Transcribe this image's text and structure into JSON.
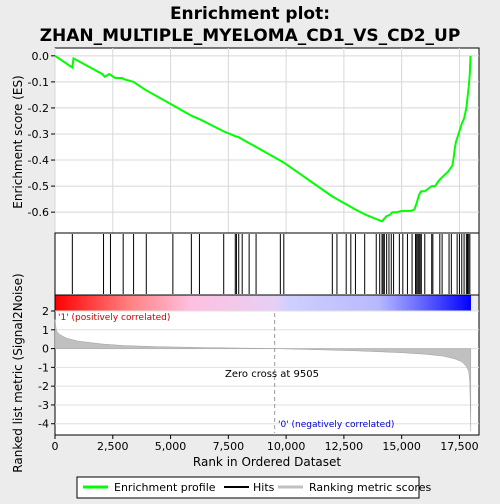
{
  "chart_data": {
    "type": "line",
    "title_line1": "Enrichment plot:",
    "title_line2": "ZHAN_MULTIPLE_MYELOMA_CD1_VS_CD2_UP",
    "xlabel": "Rank in Ordered Dataset",
    "es_ylabel": "Enrichment score (ES)",
    "metric_ylabel": "Ranked list metric (Signal2Noise)",
    "xlim": [
      0,
      19000
    ],
    "xticks": [
      0,
      2500,
      5000,
      7500,
      10000,
      12500,
      15000,
      17500
    ],
    "xtick_labels": [
      "0",
      "2,500",
      "5,000",
      "7,500",
      "10,000",
      "12,500",
      "15,000",
      "17,500"
    ],
    "es_ylim": [
      -0.68,
      0.03
    ],
    "es_yticks": [
      0.0,
      -0.1,
      -0.2,
      -0.3,
      -0.4,
      -0.5,
      -0.6
    ],
    "es_ytick_labels": [
      "0.0",
      "-0.1",
      "-0.2",
      "-0.3",
      "-0.4",
      "-0.5",
      "-0.6"
    ],
    "metric_ylim": [
      -4.6,
      2.0
    ],
    "metric_yticks": [
      2,
      1,
      0,
      -1,
      -2,
      -3,
      -4
    ],
    "metric_ytick_labels": [
      "2",
      "1",
      "0",
      "-1",
      "-2",
      "-3",
      "-4"
    ],
    "series": [
      {
        "name": "Enrichment profile",
        "color": "#00ff00",
        "x": [
          0,
          750,
          800,
          2050,
          2150,
          2350,
          2600,
          2900,
          3000,
          3400,
          3900,
          5100,
          5900,
          6300,
          7300,
          7850,
          7900,
          8100,
          8400,
          8700,
          9700,
          9900,
          12000,
          12100,
          12400,
          12800,
          13000,
          13450,
          14000,
          14150,
          14250,
          14350,
          14500,
          14600,
          14800,
          15000,
          15200,
          15400,
          15550,
          15650,
          15700,
          15750,
          15800,
          15850,
          16000,
          16300,
          16450,
          16600,
          16700,
          17000,
          17200,
          17250,
          17300,
          17350,
          17500,
          17600,
          17700,
          17800,
          17850,
          17900,
          17950,
          17980
        ],
        "y": [
          0.0,
          -0.045,
          -0.01,
          -0.07,
          -0.08,
          -0.07,
          -0.085,
          -0.085,
          -0.09,
          -0.1,
          -0.13,
          -0.19,
          -0.23,
          -0.245,
          -0.29,
          -0.31,
          -0.31,
          -0.32,
          -0.335,
          -0.35,
          -0.4,
          -0.41,
          -0.54,
          -0.545,
          -0.56,
          -0.58,
          -0.59,
          -0.61,
          -0.63,
          -0.635,
          -0.625,
          -0.615,
          -0.61,
          -0.6,
          -0.6,
          -0.595,
          -0.595,
          -0.595,
          -0.59,
          -0.565,
          -0.55,
          -0.535,
          -0.525,
          -0.52,
          -0.52,
          -0.5,
          -0.5,
          -0.48,
          -0.47,
          -0.445,
          -0.42,
          -0.39,
          -0.355,
          -0.33,
          -0.29,
          -0.26,
          -0.24,
          -0.2,
          -0.16,
          -0.12,
          -0.07,
          0.0
        ]
      },
      {
        "name": "Hits",
        "color": "#000000",
        "positions": [
          750,
          2100,
          2400,
          2950,
          3400,
          3950,
          5100,
          5900,
          6250,
          7300,
          7800,
          7850,
          7950,
          8100,
          8400,
          8700,
          9750,
          9900,
          12000,
          12200,
          12600,
          12800,
          13000,
          13400,
          13900,
          14050,
          14150,
          14200,
          14250,
          14350,
          14450,
          14550,
          14650,
          14900,
          15050,
          15250,
          15450,
          15600,
          15650,
          15700,
          15750,
          15800,
          15850,
          16000,
          16300,
          16350,
          16650,
          16750,
          17050,
          17150,
          17400,
          17500,
          17600,
          17700,
          17800,
          17850,
          17900,
          17950
        ]
      },
      {
        "name": "Ranking metric scores",
        "color": "#c0c0c0",
        "x": [
          0,
          60,
          200,
          500,
          1000,
          2000,
          3000,
          4500,
          6500,
          8500,
          9505,
          11000,
          13000,
          15000,
          16000,
          16800,
          17300,
          17600,
          17800,
          17900,
          17950,
          17990
        ],
        "y": [
          1.55,
          0.95,
          0.75,
          0.55,
          0.4,
          0.25,
          0.16,
          0.1,
          0.05,
          0.02,
          0.0,
          -0.05,
          -0.12,
          -0.22,
          -0.3,
          -0.4,
          -0.55,
          -0.7,
          -0.95,
          -1.2,
          -1.8,
          -4.4
        ]
      }
    ],
    "zero_cross_rank": 9505,
    "zero_cross_label": "Zero cross at 9505",
    "pos_label": "'1' (positively correlated)",
    "neg_label": "'0' (negatively correlated)",
    "legend_position": "bottom",
    "legend_items": [
      "Enrichment profile",
      "Hits",
      "Ranking metric scores"
    ],
    "colors": {
      "es_line": "#00ff00",
      "hits": "#000000",
      "metric_fill": "#c0c0c0",
      "pos_label": "#cc0000",
      "neg_label": "#0000cc",
      "zero_line": "#999999"
    },
    "heat_stops": [
      {
        "x": 0,
        "color": "#ff0000"
      },
      {
        "x": 3200,
        "color": "#ff8080"
      },
      {
        "x": 5900,
        "color": "#ffc0e0"
      },
      {
        "x": 9505,
        "color": "#e6d0f5"
      },
      {
        "x": 10000,
        "color": "#d0d0ff"
      },
      {
        "x": 14000,
        "color": "#b8b8ff"
      },
      {
        "x": 16000,
        "color": "#6060ff"
      },
      {
        "x": 18000,
        "color": "#0000ff"
      }
    ]
  }
}
